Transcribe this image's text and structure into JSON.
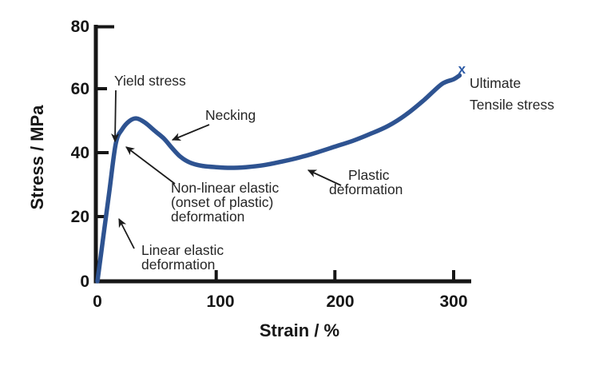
{
  "figure": {
    "background": "#ffffff",
    "description": "Stress-strain curve for a ductile polymer/material showing elastic and plastic regions"
  },
  "colors": {
    "curve": "#2e5391",
    "axis": "#161616",
    "text": "#262626",
    "marker": "#2d5ba6",
    "background": "#ffffff"
  },
  "axes": {
    "x_label": "Strain / %",
    "y_label": "Stress / MPa",
    "x_tick_labels": [
      "0",
      "100",
      "200",
      "300"
    ],
    "y_tick_labels": [
      "80",
      "60",
      "40",
      "20",
      "0"
    ]
  },
  "annotations": {
    "yield": "Yield stress",
    "necking": "Necking",
    "nonlinear": [
      "Non-linear elastic",
      "(onset of plastic)",
      "deformation"
    ],
    "linear": [
      "Linear elastic",
      "deformation"
    ],
    "plastic": [
      "Plastic",
      "deformation"
    ],
    "uts": [
      "Ultimate",
      "Tensile stress"
    ],
    "endpoint_marker": "x"
  },
  "chart_data": {
    "type": "line",
    "title": "",
    "xlabel": "Strain / %",
    "ylabel": "Stress / MPa",
    "xlim": [
      0,
      315
    ],
    "ylim": [
      0,
      80
    ],
    "x_ticks": [
      0,
      100,
      200,
      300
    ],
    "y_ticks": [
      0,
      20,
      40,
      60,
      80
    ],
    "grid": false,
    "legend": false,
    "series": [
      {
        "name": "stress-strain-curve",
        "color": "#2e5391",
        "x": [
          0,
          5,
          10,
          15.5,
          21,
          27,
          33,
          40,
          48,
          56,
          63,
          70,
          78,
          88,
          100,
          112,
          125,
          140,
          155,
          170,
          185,
          200,
          215,
          230,
          245,
          260,
          275,
          290,
          300,
          305
        ],
        "y": [
          0,
          14,
          28,
          43,
          47.5,
          50,
          50.8,
          49.5,
          47,
          44.5,
          41.5,
          38.8,
          37,
          36,
          35.6,
          35.4,
          35.6,
          36.2,
          37.3,
          38.6,
          40.2,
          42,
          43.8,
          46,
          48.5,
          52,
          56.5,
          61.5,
          63,
          64.2
        ]
      }
    ],
    "endpoint_marker": {
      "symbol": "x",
      "strain": 307,
      "stress": 66,
      "color": "#2d5ba6"
    },
    "annotations": [
      {
        "label": "Yield stress",
        "at_strain": 15,
        "at_stress": 43
      },
      {
        "label": "Non-linear elastic (onset of plastic) deformation",
        "at_strain": 22,
        "at_stress": 42
      },
      {
        "label": "Necking",
        "at_strain": 60,
        "at_stress": 44
      },
      {
        "label": "Linear elastic deformation",
        "at_strain": 16,
        "at_stress": 20
      },
      {
        "label": "Plastic deformation",
        "at_strain": 176,
        "at_stress": 36
      },
      {
        "label": "Ultimate Tensile stress",
        "at_strain": 307,
        "at_stress": 66
      }
    ]
  }
}
